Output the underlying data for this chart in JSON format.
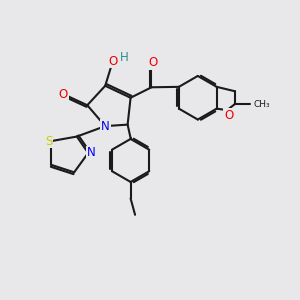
{
  "background_color": "#e8e8eb",
  "atom_colors": {
    "C": "#000000",
    "N": "#0000ee",
    "O": "#ee0000",
    "S": "#cccc00",
    "H": "#2e8b8b"
  },
  "bond_color": "#1a1a1a",
  "bond_width": 1.5,
  "font_size": 8.5
}
